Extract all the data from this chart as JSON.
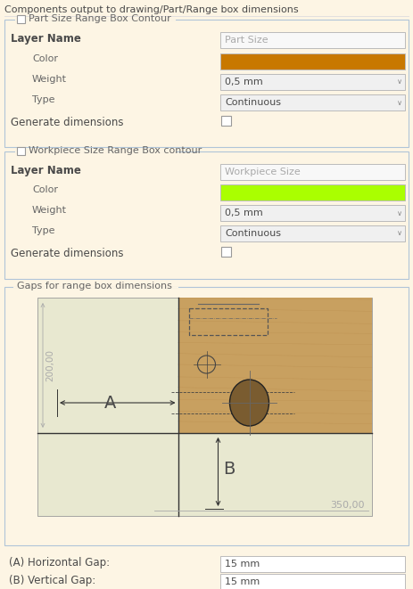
{
  "title": "Components output to drawing/Part/Range box dimensions",
  "bg_color": "#fdf5e4",
  "section_border": "#b0c4d8",
  "orange_color": "#c87800",
  "green_color": "#aaff00",
  "part_section_title": "Part Size Range Box Contour",
  "workpiece_section_title": "Workpiece Size Range Box contour",
  "gaps_section_title": "Gaps for range box dimensions",
  "layer_name_label": "Layer Name",
  "color_label": "Color",
  "weight_label": "Weight",
  "type_label": "Type",
  "gen_dim_label": "Generate dimensions",
  "part_layer_value": "Part Size",
  "workpiece_layer_value": "Workpiece Size",
  "weight_value": "0,5 mm",
  "type_value": "Continuous",
  "horiz_gap_label": "(A) Horizontal Gap:",
  "vert_gap_label": "(B) Vertical Gap:",
  "horiz_gap_value": "15 mm",
  "vert_gap_value": "15 mm",
  "dim_200": "200,00",
  "dim_350": "350,00",
  "label_A": "A",
  "label_B": "B",
  "wood_color": "#c8a060",
  "bg_gap_color": "#e8e8d0",
  "field_bg": "#f0f0f0",
  "field_bg2": "#ffffff",
  "text_dark": "#4a4a4a",
  "text_mid": "#666666",
  "text_light": "#aaaaaa"
}
